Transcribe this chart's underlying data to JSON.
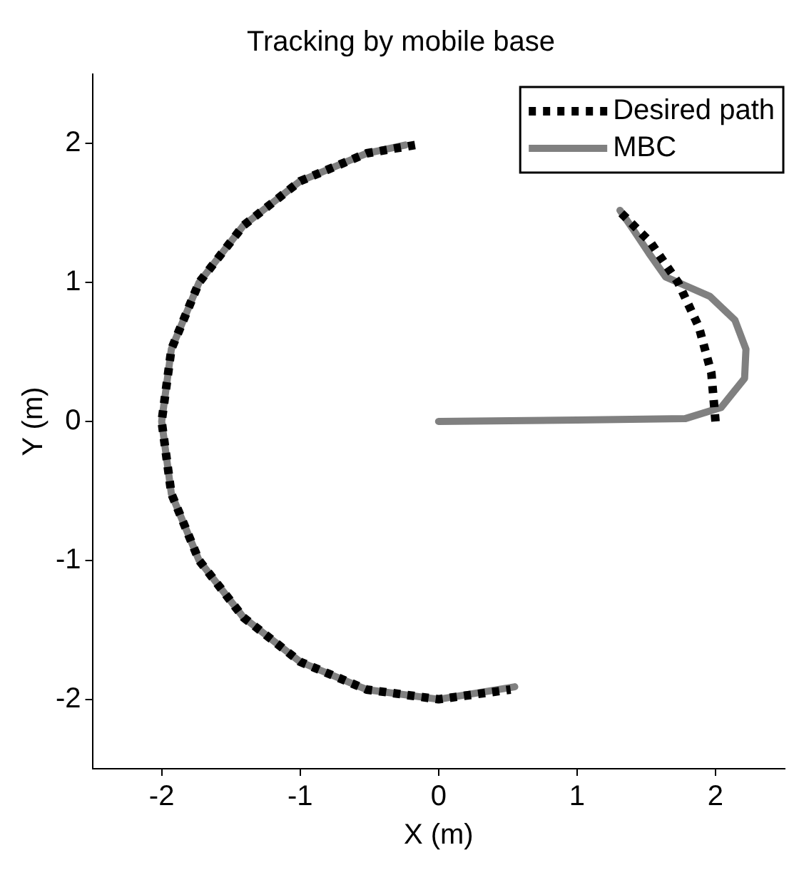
{
  "chart_data": {
    "type": "line",
    "title": "Tracking by mobile base",
    "xlabel": "X (m)",
    "ylabel": "Y (m)",
    "xlim": [
      -2.5,
      2.5
    ],
    "ylim": [
      -2.5,
      2.5
    ],
    "xticks": [
      -2,
      -1,
      0,
      1,
      2
    ],
    "yticks": [
      -2,
      -1,
      0,
      1,
      2
    ],
    "grid": false,
    "legend": "top right",
    "marker": "none",
    "series": [
      {
        "name": "Desired path",
        "color": "#000000",
        "line_style": "dotted",
        "x": [
          2,
          1.97,
          1.88,
          1.73,
          1.53,
          1.29,
          null,
          -0.17,
          -0.52,
          -1,
          -1.41,
          -1.73,
          -1.93,
          -2,
          -1.93,
          -1.73,
          -1.41,
          -1,
          -0.52,
          0,
          0.52
        ],
        "values": [
          0,
          0.35,
          0.68,
          1,
          1.29,
          1.53,
          null,
          1.99,
          1.93,
          1.73,
          1.41,
          1,
          0.52,
          0,
          -0.52,
          -1,
          -1.41,
          -1.73,
          -1.93,
          -2,
          -1.93
        ]
      },
      {
        "name": "MBC",
        "color": "#808080",
        "line_style": "solid",
        "x": [
          0,
          1,
          1.78,
          2.04,
          2.21,
          2.22,
          2.14,
          1.96,
          1.8,
          1.64,
          1.52,
          1.4,
          1.31,
          null,
          -0.24,
          -0.52,
          -1,
          -1.41,
          -1.73,
          -1.93,
          -2,
          -1.93,
          -1.73,
          -1.41,
          -1,
          -0.52,
          0,
          0.55
        ],
        "values": [
          0,
          0.01,
          0.02,
          0.1,
          0.31,
          0.52,
          0.73,
          0.9,
          0.97,
          1.04,
          1.21,
          1.39,
          1.52,
          null,
          1.99,
          1.93,
          1.73,
          1.41,
          1,
          0.52,
          0,
          -0.52,
          -1,
          -1.41,
          -1.73,
          -1.93,
          -2,
          -1.91
        ]
      }
    ]
  }
}
